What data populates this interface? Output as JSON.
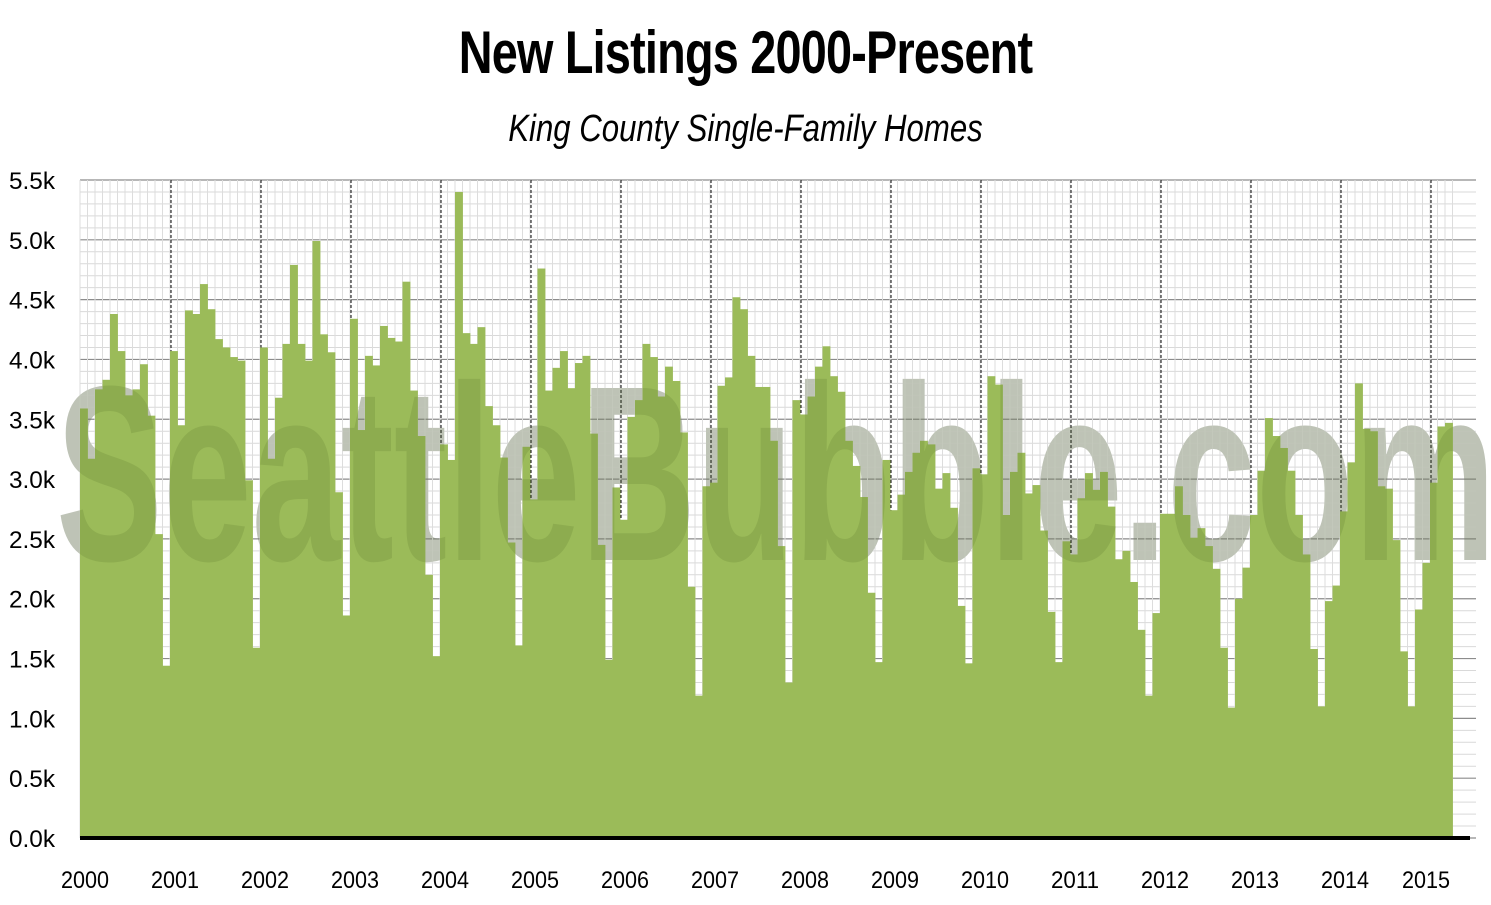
{
  "chart_data": {
    "type": "bar",
    "title": "New Listings 2000-Present",
    "subtitle": "King County Single-Family Homes",
    "watermark": "SeattleBubble.com",
    "bar_color": "#9bbb59",
    "baseline_color": "#000000",
    "ylim": [
      0,
      5500
    ],
    "yticks": [
      "0.0k",
      "0.5k",
      "1.0k",
      "1.5k",
      "2.0k",
      "2.5k",
      "3.0k",
      "3.5k",
      "4.0k",
      "4.5k",
      "5.0k",
      "5.5k"
    ],
    "x_labels": [
      "2000",
      "2001",
      "2002",
      "2003",
      "2004",
      "2005",
      "2006",
      "2007",
      "2008",
      "2009",
      "2010",
      "2011",
      "2012",
      "2013",
      "2014",
      "2015"
    ],
    "grid": true,
    "start": "2000-01",
    "values": [
      3590,
      3170,
      3750,
      3830,
      4380,
      4070,
      3700,
      3750,
      3960,
      3530,
      2540,
      1440,
      4070,
      3450,
      4410,
      4380,
      4630,
      4420,
      4170,
      4100,
      4020,
      3990,
      2990,
      1590,
      4100,
      3170,
      3680,
      4130,
      4790,
      4130,
      3990,
      4990,
      4210,
      4060,
      2890,
      1860,
      4340,
      3410,
      4030,
      3950,
      4280,
      4180,
      4150,
      4650,
      3740,
      3360,
      2200,
      1520,
      3290,
      3160,
      5400,
      4220,
      4130,
      4270,
      3610,
      3450,
      3180,
      2470,
      1610,
      3270,
      2830,
      4760,
      3740,
      3930,
      4070,
      3760,
      3970,
      4030,
      3380,
      2450,
      1490,
      2930,
      2660,
      3520,
      3660,
      4130,
      4020,
      3690,
      3940,
      3820,
      3390,
      2100,
      1190,
      2940,
      2970,
      3780,
      3850,
      4520,
      4420,
      4030,
      3770,
      3770,
      3320,
      2440,
      1300,
      3660,
      3540,
      3690,
      3940,
      4110,
      3860,
      3730,
      3320,
      3110,
      2850,
      2050,
      1470,
      3160,
      2740,
      2870,
      3060,
      3220,
      3320,
      3290,
      2920,
      3050,
      2760,
      1940,
      1460,
      3090,
      3040,
      3860,
      3790,
      2700,
      3060,
      3220,
      2880,
      2950,
      2570,
      1890,
      1470,
      2480,
      2370,
      2840,
      3050,
      2910,
      3060,
      2770,
      2330,
      2400,
      2140,
      1740,
      1190,
      1880,
      2710,
      2710,
      2940,
      2700,
      2510,
      2590,
      2440,
      2250,
      1590,
      1090,
      2000,
      2260,
      2700,
      3070,
      3510,
      3360,
      3260,
      3070,
      2700,
      2370,
      1580,
      1100,
      1980,
      2110,
      2730,
      3140,
      3800,
      3420,
      3400,
      2940,
      2920,
      2490,
      1560,
      1100,
      1910,
      2300,
      2970,
      3440,
      3470
    ]
  }
}
